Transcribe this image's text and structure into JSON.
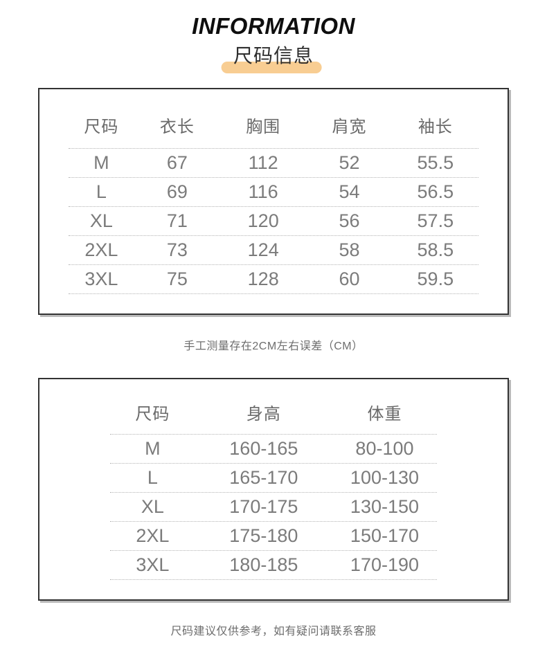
{
  "header": {
    "title": "INFORMATION",
    "subtitle": "尺码信息",
    "accent_color": "#f8cd92"
  },
  "size_table": {
    "columns": [
      "尺码",
      "衣长",
      "胸围",
      "肩宽",
      "袖长"
    ],
    "rows": [
      [
        "M",
        "67",
        "112",
        "52",
        "55.5"
      ],
      [
        "L",
        "69",
        "116",
        "54",
        "56.5"
      ],
      [
        "XL",
        "71",
        "120",
        "56",
        "57.5"
      ],
      [
        "2XL",
        "73",
        "124",
        "58",
        "58.5"
      ],
      [
        "3XL",
        "75",
        "128",
        "60",
        "59.5"
      ]
    ],
    "note": "手工测量存在2CM左右误差（CM）"
  },
  "fit_table": {
    "columns": [
      "尺码",
      "身高",
      "体重"
    ],
    "rows": [
      [
        "M",
        "160-165",
        "80-100"
      ],
      [
        "L",
        "165-170",
        "100-130"
      ],
      [
        "XL",
        "170-175",
        "130-150"
      ],
      [
        "2XL",
        "175-180",
        "150-170"
      ],
      [
        "3XL",
        "180-185",
        "170-190"
      ]
    ],
    "note": "尺码建议仅供参考，如有疑问请联系客服"
  }
}
